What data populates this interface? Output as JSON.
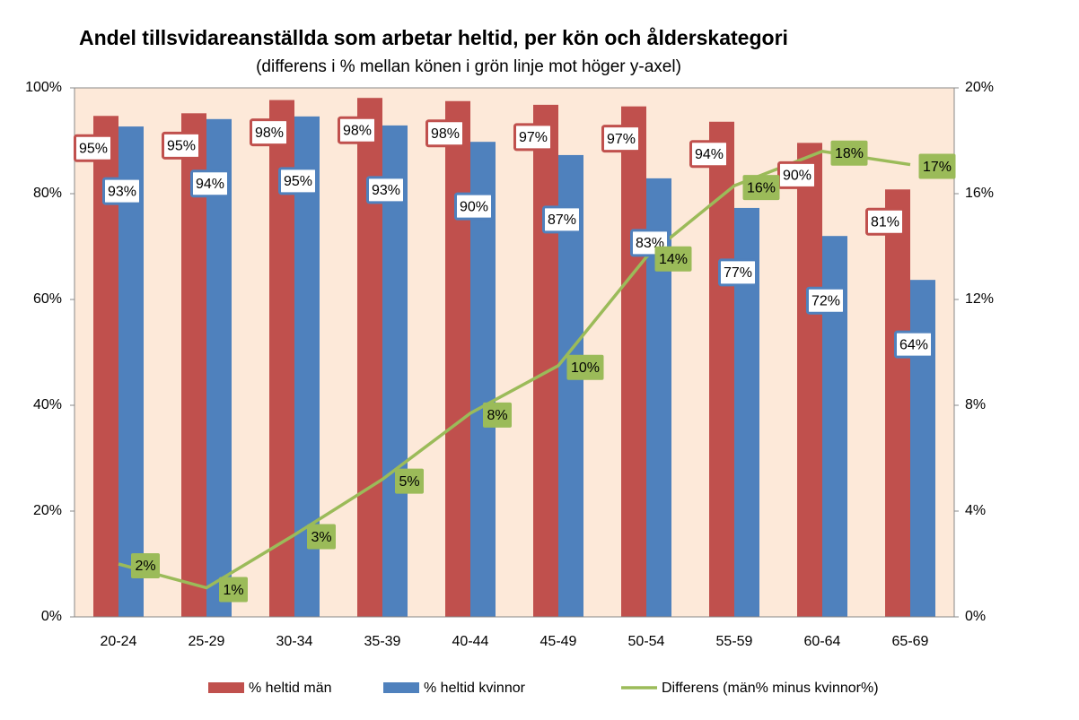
{
  "chart_data": {
    "type": "bar_line",
    "title": "Andel tillsvidareanställda som arbetar heltid, per kön och ålderskategori",
    "subtitle": "(differens i % mellan könen i grön linje mot höger y-axel)",
    "categories": [
      "20-24",
      "25-29",
      "30-34",
      "35-39",
      "40-44",
      "45-49",
      "50-54",
      "55-59",
      "60-64",
      "65-69"
    ],
    "series": [
      {
        "name": "% heltid män",
        "color": "#c0504d",
        "type": "bar",
        "values": [
          94.7,
          95.2,
          97.7,
          98.1,
          97.5,
          96.8,
          96.5,
          93.6,
          89.6,
          80.8
        ],
        "value_labels": [
          "95%",
          "95%",
          "98%",
          "98%",
          "98%",
          "97%",
          "97%",
          "94%",
          "90%",
          "81%"
        ]
      },
      {
        "name": "% heltid kvinnor",
        "color": "#4f81bd",
        "type": "bar",
        "values": [
          92.7,
          94.1,
          94.6,
          92.9,
          89.8,
          87.3,
          82.9,
          77.3,
          72.0,
          63.7
        ],
        "value_labels": [
          "93%",
          "94%",
          "95%",
          "93%",
          "90%",
          "87%",
          "83%",
          "77%",
          "72%",
          "64%"
        ]
      },
      {
        "name": "Differens (män% minus kvinnor%)",
        "color": "#9bbb59",
        "type": "line",
        "axis": "y2",
        "values": [
          2.0,
          1.1,
          3.1,
          5.2,
          7.7,
          9.5,
          13.6,
          16.3,
          17.6,
          17.1
        ],
        "value_labels": [
          "2%",
          "1%",
          "3%",
          "5%",
          "8%",
          "10%",
          "14%",
          "16%",
          "18%",
          "17%"
        ]
      }
    ],
    "ylim": [
      0,
      100
    ],
    "yticks": [
      {
        "value": 0,
        "label": "0%"
      },
      {
        "value": 20,
        "label": "20%"
      },
      {
        "value": 40,
        "label": "40%"
      },
      {
        "value": 60,
        "label": "60%"
      },
      {
        "value": 80,
        "label": "80%"
      },
      {
        "value": 100,
        "label": "100%"
      }
    ],
    "y2lim": [
      0,
      20
    ],
    "y2ticks": [
      {
        "value": 0,
        "label": "0%"
      },
      {
        "value": 4,
        "label": "4%"
      },
      {
        "value": 8,
        "label": "8%"
      },
      {
        "value": 12,
        "label": "12%"
      },
      {
        "value": 16,
        "label": "16%"
      },
      {
        "value": 20,
        "label": "20%"
      }
    ],
    "legend": "bottom"
  }
}
